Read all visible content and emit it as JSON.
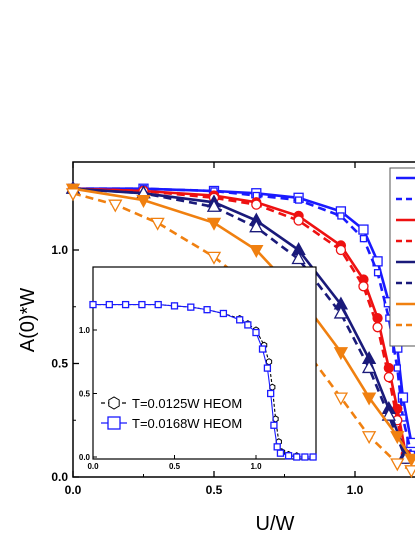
{
  "chart_data": [
    {
      "type": "line",
      "xlabel": "U/W",
      "ylabel": "A(0)*W",
      "xlim": [
        0,
        1.2
      ],
      "ylim": [
        0,
        1.4
      ],
      "x_ticks": [
        "0.0",
        "0.5",
        "1.0"
      ],
      "y_ticks": [
        "0.0",
        "0.5",
        "1.0"
      ],
      "legend_position": "top-right (partially cut off)",
      "series": [
        {
          "color": "#1a1aff",
          "style": "solid",
          "marker": "open-square",
          "x": [
            0,
            0.25,
            0.5,
            0.65,
            0.8,
            0.95,
            1.03,
            1.08,
            1.12,
            1.15,
            1.17,
            1.2
          ],
          "y": [
            1.27,
            1.27,
            1.26,
            1.25,
            1.23,
            1.17,
            1.09,
            0.95,
            0.77,
            0.57,
            0.35,
            0.15
          ]
        },
        {
          "color": "#1a1aff",
          "style": "dashed",
          "marker": "small-open-square",
          "x": [
            0,
            0.25,
            0.5,
            0.65,
            0.8,
            0.95,
            1.03,
            1.08,
            1.12,
            1.15,
            1.17,
            1.2
          ],
          "y": [
            1.27,
            1.27,
            1.26,
            1.24,
            1.22,
            1.15,
            1.05,
            0.9,
            0.7,
            0.48,
            0.26,
            0.1
          ]
        },
        {
          "color": "#ee1111",
          "style": "solid",
          "marker": "filled-circle",
          "x": [
            0,
            0.25,
            0.5,
            0.65,
            0.8,
            0.95,
            1.03,
            1.08,
            1.12,
            1.15,
            1.18
          ],
          "y": [
            1.27,
            1.26,
            1.24,
            1.21,
            1.15,
            1.02,
            0.87,
            0.7,
            0.48,
            0.3,
            0.1
          ]
        },
        {
          "color": "#ee1111",
          "style": "dashed",
          "marker": "open-circle",
          "x": [
            0,
            0.25,
            0.5,
            0.65,
            0.8,
            0.95,
            1.03,
            1.08,
            1.12,
            1.15,
            1.18
          ],
          "y": [
            1.27,
            1.26,
            1.23,
            1.2,
            1.13,
            1.0,
            0.84,
            0.66,
            0.44,
            0.25,
            0.08
          ]
        },
        {
          "color": "#1a1a7a",
          "style": "solid",
          "marker": "filled-triangle-up",
          "x": [
            0,
            0.25,
            0.5,
            0.65,
            0.8,
            0.95,
            1.05,
            1.12,
            1.18
          ],
          "y": [
            1.27,
            1.25,
            1.21,
            1.13,
            1.0,
            0.76,
            0.52,
            0.3,
            0.1
          ]
        },
        {
          "color": "#1a1a7a",
          "style": "dashed",
          "marker": "open-triangle-up",
          "x": [
            0,
            0.25,
            0.5,
            0.65,
            0.8,
            0.95,
            1.05,
            1.12,
            1.18
          ],
          "y": [
            1.27,
            1.25,
            1.19,
            1.1,
            0.96,
            0.72,
            0.48,
            0.27,
            0.08
          ]
        },
        {
          "color": "#f08010",
          "style": "solid",
          "marker": "filled-triangle-down",
          "x": [
            0,
            0.25,
            0.5,
            0.65,
            0.8,
            0.95,
            1.05,
            1.15,
            1.2
          ],
          "y": [
            1.27,
            1.22,
            1.12,
            1.0,
            0.8,
            0.55,
            0.35,
            0.18,
            0.08
          ]
        },
        {
          "color": "#f08010",
          "style": "dashed",
          "marker": "open-triangle-down",
          "x": [
            0,
            0.15,
            0.3,
            0.5,
            0.65,
            0.8,
            0.95,
            1.05,
            1.15,
            1.2
          ],
          "y": [
            1.25,
            1.2,
            1.12,
            0.97,
            0.82,
            0.6,
            0.35,
            0.18,
            0.06,
            0.03
          ]
        }
      ]
    },
    {
      "type": "line",
      "placement": "inset",
      "xlim": [
        0,
        1.4
      ],
      "ylim": [
        0,
        1.35
      ],
      "x_ticks": [
        "0.0",
        "0.5",
        "1.0"
      ],
      "y_ticks": [
        "0.0",
        "0.5",
        "1.0"
      ],
      "series": [
        {
          "name": "T=0.0125W HEOM",
          "color": "#000000",
          "style": "dashed",
          "marker": "open-hexagon",
          "x": [
            0,
            0.1,
            0.2,
            0.3,
            0.4,
            0.5,
            0.6,
            0.7,
            0.8,
            0.9,
            0.95,
            1.0,
            1.05,
            1.08,
            1.1,
            1.12,
            1.14,
            1.16,
            1.2,
            1.25,
            1.3,
            1.35
          ],
          "y": [
            1.2,
            1.2,
            1.2,
            1.2,
            1.2,
            1.19,
            1.18,
            1.16,
            1.13,
            1.09,
            1.05,
            1.0,
            0.88,
            0.75,
            0.55,
            0.3,
            0.12,
            0.04,
            0.02,
            0.01,
            0.0,
            0.0
          ]
        },
        {
          "name": "T=0.0168W HEOM",
          "color": "#1a1aff",
          "style": "solid",
          "marker": "open-square",
          "x": [
            0,
            0.1,
            0.2,
            0.3,
            0.4,
            0.5,
            0.6,
            0.7,
            0.8,
            0.9,
            0.95,
            1.0,
            1.04,
            1.07,
            1.09,
            1.11,
            1.13,
            1.15,
            1.2,
            1.25,
            1.3,
            1.35
          ],
          "y": [
            1.2,
            1.2,
            1.2,
            1.2,
            1.2,
            1.19,
            1.18,
            1.16,
            1.13,
            1.08,
            1.04,
            0.98,
            0.85,
            0.7,
            0.5,
            0.25,
            0.08,
            0.03,
            0.01,
            0.0,
            0.0,
            0.0
          ]
        }
      ]
    }
  ]
}
